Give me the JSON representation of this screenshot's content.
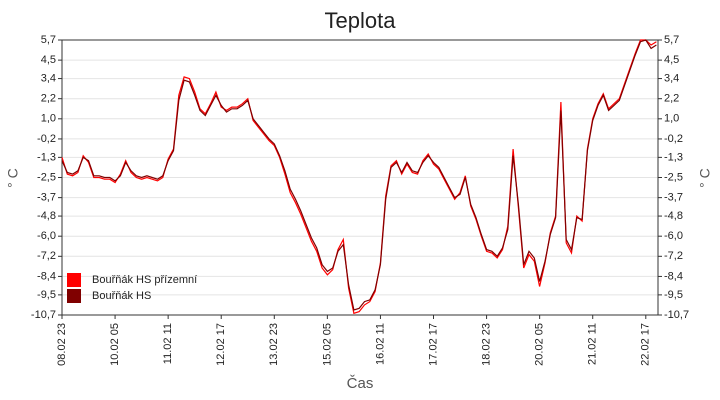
{
  "chart_data": {
    "type": "line",
    "title": "Teplota",
    "ylabel": "° C",
    "xlabel": "Čas",
    "categories": [
      "08.02 23",
      null,
      null,
      null,
      null,
      null,
      null,
      null,
      null,
      null,
      "10.02 05",
      null,
      null,
      null,
      null,
      null,
      null,
      null,
      null,
      null,
      "11.02 11",
      null,
      null,
      null,
      null,
      null,
      null,
      null,
      null,
      null,
      "12.02 17",
      null,
      null,
      null,
      null,
      null,
      null,
      null,
      null,
      null,
      "13.02 23",
      null,
      null,
      null,
      null,
      null,
      null,
      null,
      null,
      null,
      "15.02 05",
      null,
      null,
      null,
      null,
      null,
      null,
      null,
      null,
      null,
      "16.02 11",
      null,
      null,
      null,
      null,
      null,
      null,
      null,
      null,
      null,
      "17.02 17",
      null,
      null,
      null,
      null,
      null,
      null,
      null,
      null,
      null,
      "18.02 23",
      null,
      null,
      null,
      null,
      null,
      null,
      null,
      null,
      null,
      "20.02 05",
      null,
      null,
      null,
      null,
      null,
      null,
      null,
      null,
      null,
      "21.02 11",
      null,
      null,
      null,
      null,
      null,
      null,
      null,
      null,
      null,
      "22.02 17",
      null,
      null
    ],
    "series": [
      {
        "name": "Bouřňák HS přízemní",
        "color": "#ff0000",
        "values": [
          -1.3,
          -2.3,
          -2.4,
          -2.2,
          -1.2,
          -1.6,
          -2.5,
          -2.5,
          -2.6,
          -2.6,
          -2.8,
          -2.3,
          -1.5,
          -2.2,
          -2.5,
          -2.6,
          -2.5,
          -2.6,
          -2.7,
          -2.5,
          -1.4,
          -0.8,
          2.4,
          3.5,
          3.4,
          2.6,
          1.6,
          1.3,
          1.9,
          2.6,
          1.7,
          1.5,
          1.7,
          1.7,
          1.9,
          2.2,
          0.9,
          0.5,
          0.1,
          -0.3,
          -0.6,
          -1.3,
          -2.3,
          -3.4,
          -4.0,
          -4.7,
          -5.5,
          -6.3,
          -6.9,
          -7.9,
          -8.3,
          -8.0,
          -6.8,
          -6.2,
          -9.1,
          -10.6,
          -10.5,
          -10.1,
          -9.9,
          -9.3,
          -7.6,
          -3.6,
          -1.8,
          -1.5,
          -2.3,
          -1.7,
          -2.2,
          -2.3,
          -1.5,
          -1.1,
          -1.7,
          -2.0,
          -2.6,
          -3.2,
          -3.8,
          -3.4,
          -2.4,
          -4.2,
          -5.0,
          -6.0,
          -6.9,
          -7.0,
          -7.3,
          -6.8,
          -5.4,
          -0.8,
          -4.3,
          -7.9,
          -7.1,
          -7.5,
          -9.0,
          -7.6,
          -5.8,
          -4.8,
          2.0,
          -6.4,
          -7.0,
          -4.8,
          -5.1,
          -0.8,
          1.0,
          1.9,
          2.5,
          1.6,
          1.9,
          2.2,
          3.1,
          4.0,
          4.9,
          5.7,
          5.7,
          5.4,
          5.6
        ]
      },
      {
        "name": "Bouřňák HS",
        "color": "#800000",
        "values": [
          -1.5,
          -2.2,
          -2.3,
          -2.1,
          -1.3,
          -1.5,
          -2.4,
          -2.4,
          -2.5,
          -2.5,
          -2.7,
          -2.4,
          -1.6,
          -2.1,
          -2.4,
          -2.5,
          -2.4,
          -2.5,
          -2.6,
          -2.4,
          -1.5,
          -0.9,
          2.1,
          3.3,
          3.2,
          2.4,
          1.5,
          1.2,
          1.8,
          2.4,
          1.8,
          1.4,
          1.6,
          1.6,
          1.8,
          2.1,
          1.0,
          0.6,
          0.2,
          -0.2,
          -0.5,
          -1.2,
          -2.1,
          -3.2,
          -3.8,
          -4.5,
          -5.3,
          -6.1,
          -6.7,
          -7.7,
          -8.1,
          -7.9,
          -6.9,
          -6.5,
          -8.9,
          -10.4,
          -10.3,
          -9.9,
          -9.8,
          -9.2,
          -7.7,
          -3.8,
          -1.9,
          -1.6,
          -2.2,
          -1.6,
          -2.1,
          -2.2,
          -1.6,
          -1.2,
          -1.6,
          -1.9,
          -2.5,
          -3.1,
          -3.7,
          -3.5,
          -2.5,
          -4.1,
          -4.9,
          -5.9,
          -6.8,
          -6.9,
          -7.2,
          -6.7,
          -5.6,
          -1.2,
          -4.1,
          -7.7,
          -6.9,
          -7.3,
          -8.7,
          -7.5,
          -5.9,
          -4.9,
          1.5,
          -6.2,
          -6.8,
          -4.9,
          -5.0,
          -0.9,
          0.9,
          1.8,
          2.4,
          1.5,
          1.8,
          2.1,
          3.0,
          3.9,
          4.8,
          5.6,
          5.7,
          5.2,
          5.4
        ]
      }
    ],
    "ylim": [
      -10.7,
      5.7
    ],
    "yticks": [
      {
        "value": 5.7,
        "label": "5,7"
      },
      {
        "value": 4.5,
        "label": "4,5"
      },
      {
        "value": 3.4,
        "label": "3,4"
      },
      {
        "value": 2.2,
        "label": "2,2"
      },
      {
        "value": 1.0,
        "label": "1,0"
      },
      {
        "value": -0.2,
        "label": "-0,2"
      },
      {
        "value": -1.3,
        "label": "-1,3"
      },
      {
        "value": -2.5,
        "label": "-2,5"
      },
      {
        "value": -3.7,
        "label": "-3,7"
      },
      {
        "value": -4.8,
        "label": "-4,8"
      },
      {
        "value": -6.0,
        "label": "-6,0"
      },
      {
        "value": -7.2,
        "label": "-7,2"
      },
      {
        "value": -8.4,
        "label": "-8,4"
      },
      {
        "value": -9.5,
        "label": "-9,5"
      },
      {
        "value": -10.7,
        "label": "-10,7"
      }
    ],
    "grid": true,
    "legend": "lower left"
  }
}
